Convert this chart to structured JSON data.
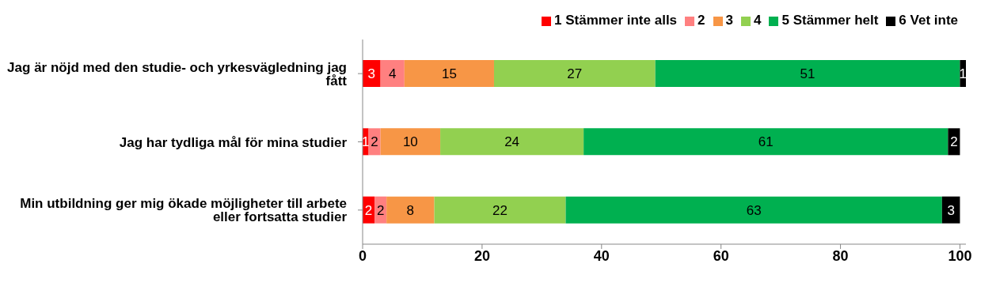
{
  "chart_data": {
    "type": "bar",
    "orientation": "horizontal",
    "stacked": true,
    "data_labels": true,
    "grid": false,
    "legend": "top right",
    "categories": [
      "Jag är nöjd med den studie- och yrkesvägledning jag fått",
      "Jag har tydliga mål för mina studier",
      "Min utbildning ger mig ökade möjligheter till arbete eller fortsatta studier"
    ],
    "xlim": [
      0,
      101
    ],
    "xticks": [
      0,
      20,
      40,
      60,
      80,
      100
    ],
    "series": [
      {
        "name": "1 Stämmer inte alls",
        "color": "#ff0000",
        "values": [
          3,
          1,
          2
        ]
      },
      {
        "name": "2",
        "color": "#ff8080",
        "values": [
          4,
          2,
          2
        ]
      },
      {
        "name": "3",
        "color": "#f79646",
        "values": [
          15,
          10,
          8
        ]
      },
      {
        "name": "4",
        "color": "#92d050",
        "values": [
          27,
          24,
          22
        ]
      },
      {
        "name": "5 Stämmer helt",
        "color": "#00b050",
        "values": [
          51,
          61,
          63
        ]
      },
      {
        "name": "6 Vet inte",
        "color": "#000000",
        "values": [
          1,
          2,
          3
        ]
      }
    ]
  }
}
